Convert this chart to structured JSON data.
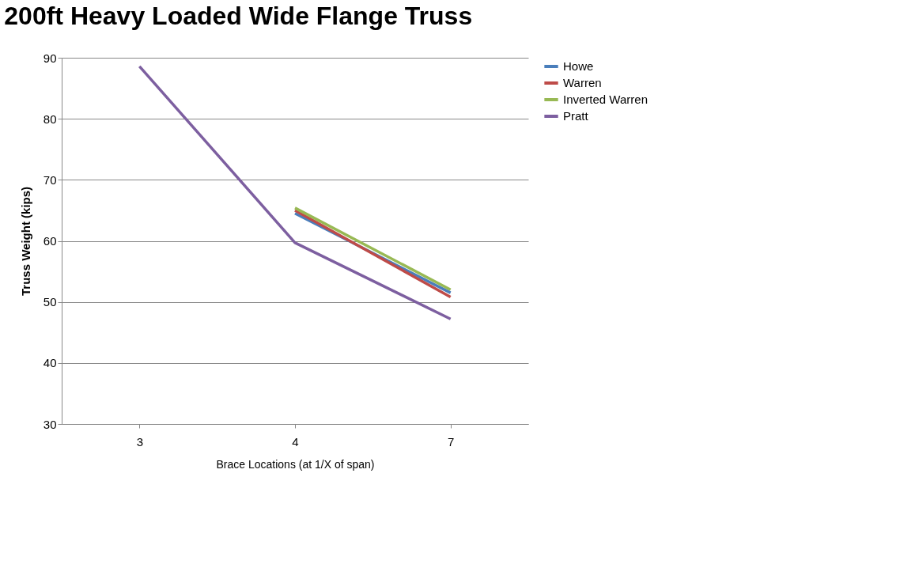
{
  "chart_data": {
    "type": "line",
    "title": "200ft Heavy Loaded Wide Flange Truss",
    "xlabel": "Brace Locations (at 1/X of span)",
    "ylabel": "Truss Weight (kips)",
    "categories": [
      "3",
      "4",
      "7"
    ],
    "series": [
      {
        "name": "Howe",
        "color": "#4a7ebb",
        "values": [
          null,
          64.5,
          51.5
        ]
      },
      {
        "name": "Warren",
        "color": "#be4b48",
        "values": [
          null,
          65.0,
          50.8
        ]
      },
      {
        "name": "Inverted Warren",
        "color": "#98b954",
        "values": [
          null,
          65.4,
          52.0
        ]
      },
      {
        "name": "Pratt",
        "color": "#7d5fa0",
        "values": [
          88.6,
          59.7,
          47.2
        ]
      }
    ],
    "ylim": [
      30,
      90
    ],
    "yticks": [
      30,
      40,
      50,
      60,
      70,
      80,
      90
    ],
    "grid": "y",
    "legend": "right",
    "marker": "none",
    "line_style": "solid"
  }
}
